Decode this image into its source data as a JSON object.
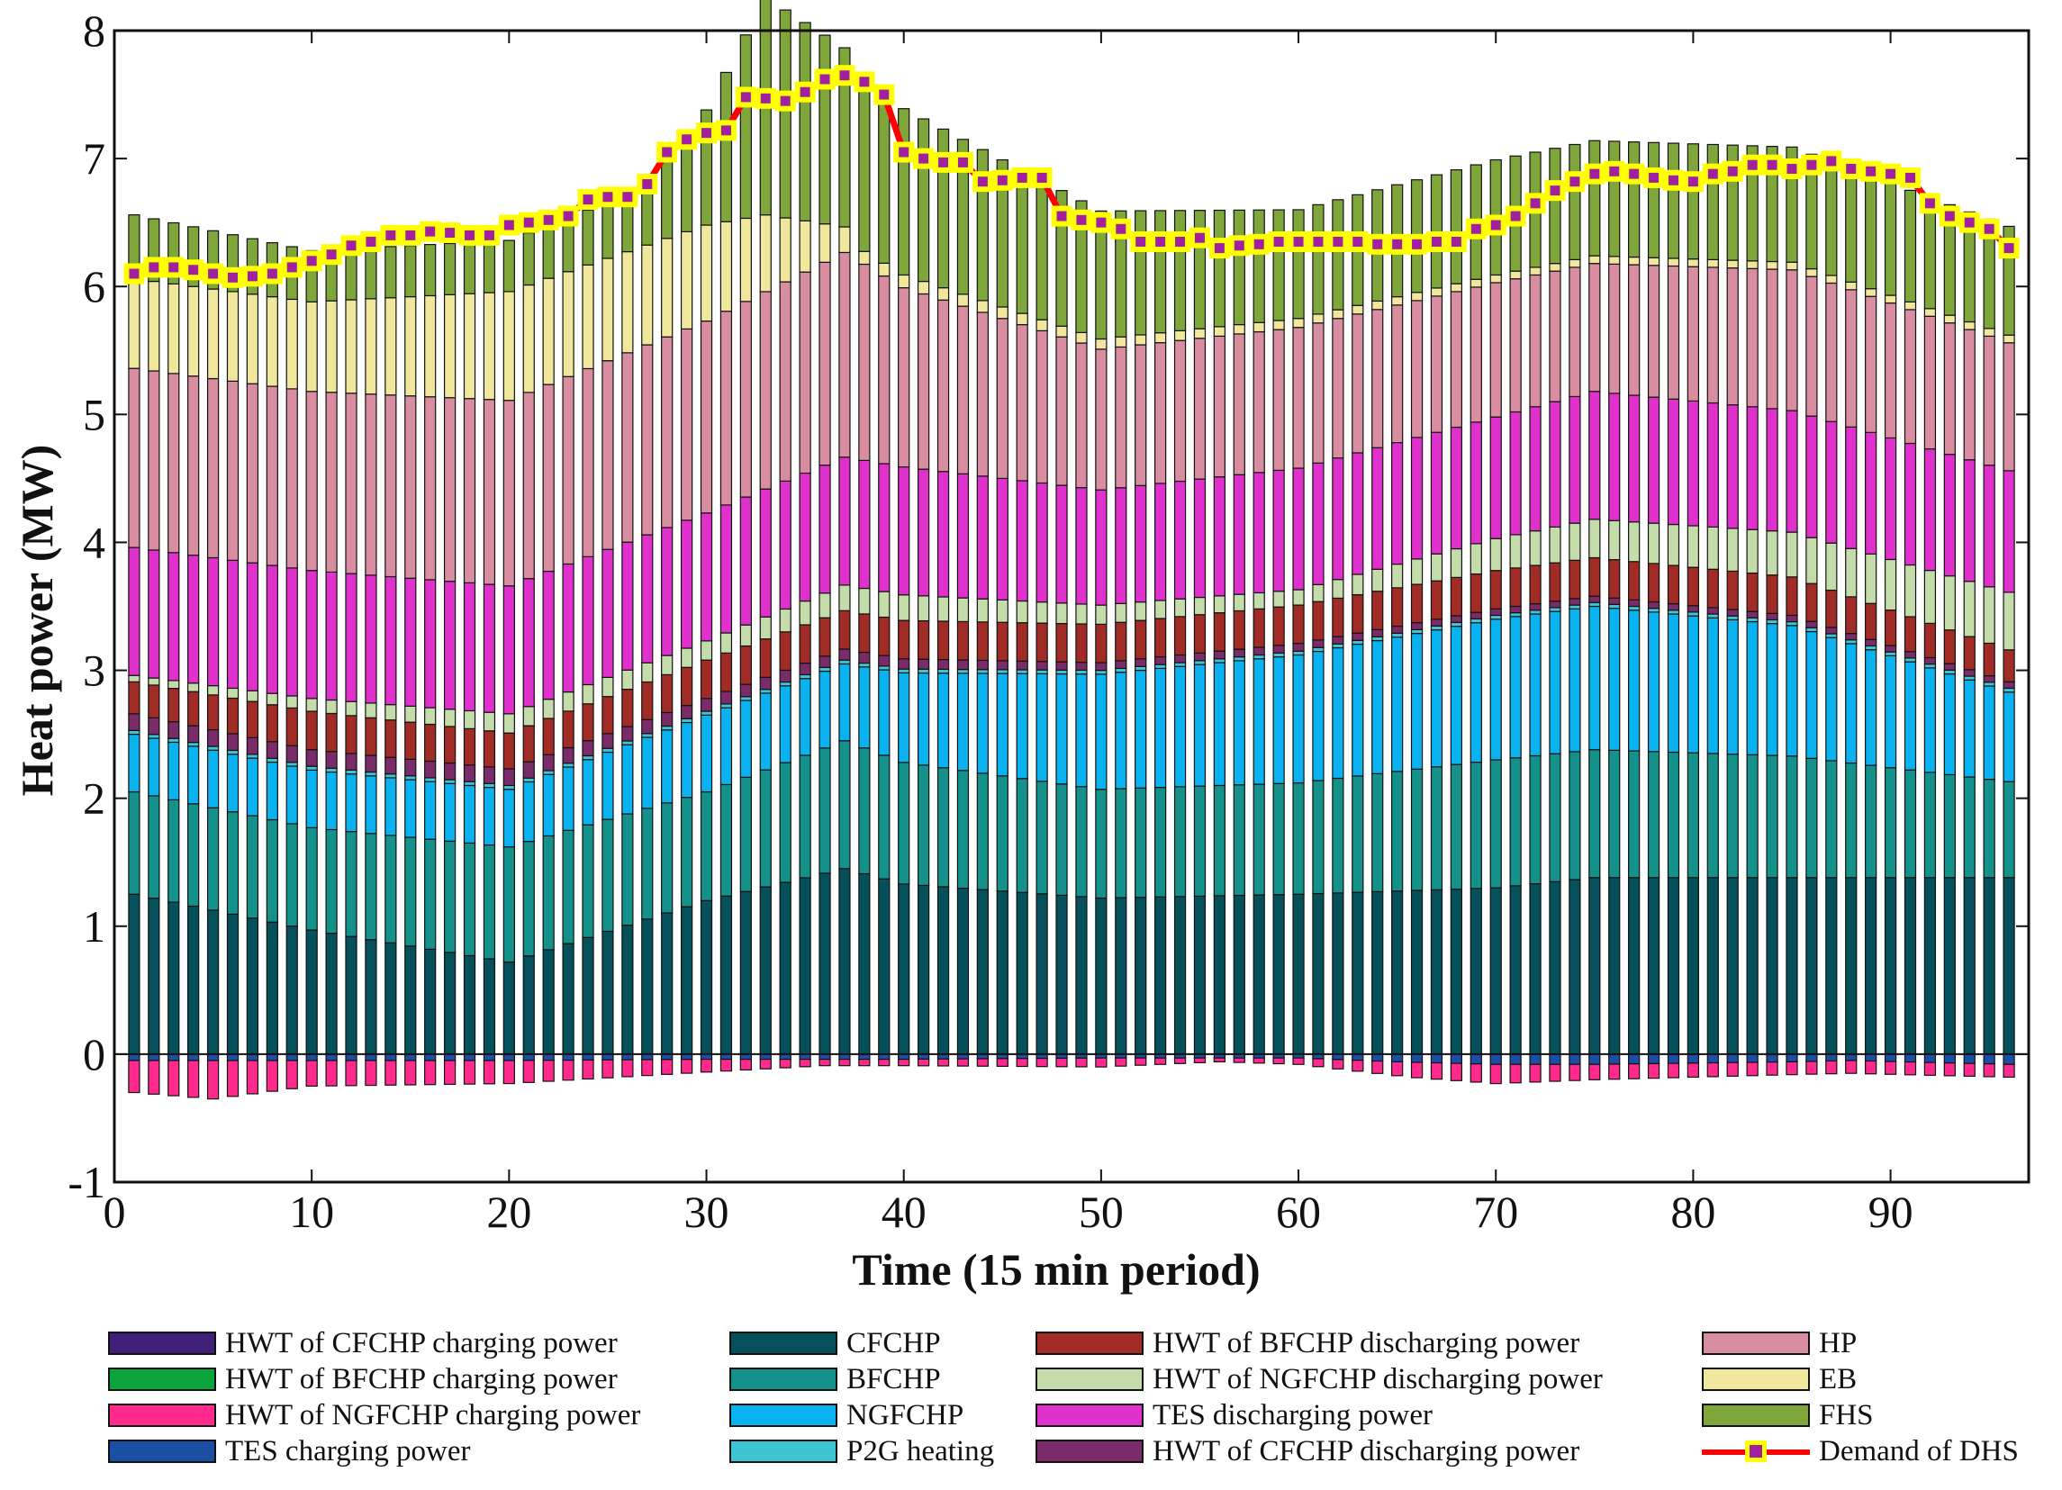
{
  "chart_data": {
    "type": "bar",
    "stacked": true,
    "xlabel": "Time (15 min period)",
    "ylabel": "Heat power (MW)",
    "xlim": [
      0,
      97
    ],
    "ylim": [
      -1,
      8
    ],
    "xticks": [
      0,
      10,
      20,
      30,
      40,
      50,
      60,
      70,
      80,
      90
    ],
    "yticks": [
      -1,
      0,
      1,
      2,
      3,
      4,
      5,
      6,
      7,
      8
    ],
    "x": [
      1,
      2,
      3,
      4,
      5,
      6,
      7,
      8,
      9,
      10,
      11,
      12,
      13,
      14,
      15,
      16,
      17,
      18,
      19,
      20,
      21,
      22,
      23,
      24,
      25,
      26,
      27,
      28,
      29,
      30,
      31,
      32,
      33,
      34,
      35,
      36,
      37,
      38,
      39,
      40,
      41,
      42,
      43,
      44,
      45,
      46,
      47,
      48,
      49,
      50,
      51,
      52,
      53,
      54,
      55,
      56,
      57,
      58,
      59,
      60,
      61,
      62,
      63,
      64,
      65,
      66,
      67,
      68,
      69,
      70,
      71,
      72,
      73,
      74,
      75,
      76,
      77,
      78,
      79,
      80,
      81,
      82,
      83,
      84,
      85,
      86,
      87,
      88,
      89,
      90,
      91,
      92,
      93,
      94,
      95,
      96
    ],
    "key_points": {
      "CFCHP": [
        [
          1,
          1.25
        ],
        [
          10,
          0.97
        ],
        [
          20,
          0.72
        ],
        [
          30,
          1.2
        ],
        [
          37,
          1.45
        ],
        [
          40,
          1.33
        ],
        [
          50,
          1.22
        ],
        [
          60,
          1.25
        ],
        [
          70,
          1.3
        ],
        [
          75,
          1.38
        ],
        [
          85,
          1.38
        ],
        [
          96,
          1.38
        ]
      ],
      "BFCHP": [
        [
          1,
          0.8
        ],
        [
          10,
          0.8
        ],
        [
          20,
          0.9
        ],
        [
          30,
          0.85
        ],
        [
          37,
          1.0
        ],
        [
          40,
          0.95
        ],
        [
          50,
          0.85
        ],
        [
          60,
          0.87
        ],
        [
          70,
          1.0
        ],
        [
          75,
          1.0
        ],
        [
          85,
          0.95
        ],
        [
          96,
          0.75
        ]
      ],
      "NGFCHP": [
        [
          1,
          0.45
        ],
        [
          10,
          0.45
        ],
        [
          20,
          0.45
        ],
        [
          30,
          0.6
        ],
        [
          37,
          0.6
        ],
        [
          40,
          0.7
        ],
        [
          50,
          0.9
        ],
        [
          60,
          1.0
        ],
        [
          70,
          1.1
        ],
        [
          75,
          1.12
        ],
        [
          85,
          1.02
        ],
        [
          96,
          0.7
        ]
      ],
      "P2G heating": [
        [
          1,
          0.03
        ],
        [
          96,
          0.03
        ]
      ],
      "HWT of CFCHP discharging power": [
        [
          1,
          0.13
        ],
        [
          10,
          0.13
        ],
        [
          20,
          0.13
        ],
        [
          30,
          0.1
        ],
        [
          40,
          0.08
        ],
        [
          50,
          0.06
        ],
        [
          60,
          0.06
        ],
        [
          70,
          0.05
        ],
        [
          96,
          0.05
        ]
      ],
      "HWT of BFCHP discharging power": [
        [
          1,
          0.25
        ],
        [
          10,
          0.3
        ],
        [
          20,
          0.28
        ],
        [
          30,
          0.3
        ],
        [
          40,
          0.3
        ],
        [
          50,
          0.3
        ],
        [
          60,
          0.3
        ],
        [
          70,
          0.3
        ],
        [
          75,
          0.3
        ],
        [
          85,
          0.3
        ],
        [
          96,
          0.25
        ]
      ],
      "HWT of NGFCHP discharging power": [
        [
          1,
          0.05
        ],
        [
          10,
          0.1
        ],
        [
          20,
          0.15
        ],
        [
          30,
          0.15
        ],
        [
          37,
          0.2
        ],
        [
          40,
          0.2
        ],
        [
          50,
          0.15
        ],
        [
          60,
          0.12
        ],
        [
          70,
          0.25
        ],
        [
          75,
          0.3
        ],
        [
          85,
          0.35
        ],
        [
          96,
          0.45
        ]
      ],
      "TES discharging power": [
        [
          1,
          1.0
        ],
        [
          10,
          1.0
        ],
        [
          20,
          1.0
        ],
        [
          30,
          1.0
        ],
        [
          37,
          1.0
        ],
        [
          40,
          1.0
        ],
        [
          50,
          0.9
        ],
        [
          60,
          0.95
        ],
        [
          70,
          0.95
        ],
        [
          75,
          1.0
        ],
        [
          85,
          0.95
        ],
        [
          96,
          0.95
        ]
      ],
      "HP": [
        [
          1,
          1.4
        ],
        [
          10,
          1.4
        ],
        [
          20,
          1.45
        ],
        [
          30,
          1.5
        ],
        [
          37,
          1.6
        ],
        [
          40,
          1.4
        ],
        [
          50,
          1.1
        ],
        [
          60,
          1.1
        ],
        [
          70,
          1.05
        ],
        [
          75,
          1.0
        ],
        [
          85,
          1.1
        ],
        [
          96,
          1.0
        ]
      ],
      "EB": [
        [
          1,
          0.7
        ],
        [
          10,
          0.7
        ],
        [
          20,
          0.85
        ],
        [
          30,
          0.75
        ],
        [
          33,
          0.6
        ],
        [
          37,
          0.2
        ],
        [
          38,
          0.1
        ],
        [
          40,
          0.1
        ],
        [
          50,
          0.08
        ],
        [
          60,
          0.07
        ],
        [
          70,
          0.06
        ],
        [
          96,
          0.06
        ]
      ],
      "FHS": [
        [
          1,
          0.5
        ],
        [
          10,
          0.4
        ],
        [
          20,
          0.4
        ],
        [
          27,
          0.45
        ],
        [
          30,
          0.9
        ],
        [
          33,
          1.7
        ],
        [
          37,
          1.4
        ],
        [
          40,
          1.3
        ],
        [
          50,
          1.0
        ],
        [
          60,
          0.85
        ],
        [
          70,
          0.9
        ],
        [
          75,
          0.9
        ],
        [
          85,
          0.9
        ],
        [
          96,
          0.85
        ]
      ],
      "HWT of NGFCHP charging power": [
        [
          1,
          -0.25
        ],
        [
          5,
          -0.3
        ],
        [
          10,
          -0.2
        ],
        [
          20,
          -0.18
        ],
        [
          30,
          -0.1
        ],
        [
          36,
          -0.05
        ],
        [
          40,
          -0.05
        ],
        [
          50,
          -0.07
        ],
        [
          56,
          -0.03
        ],
        [
          60,
          -0.05
        ],
        [
          66,
          -0.12
        ],
        [
          70,
          -0.15
        ],
        [
          75,
          -0.12
        ],
        [
          85,
          -0.1
        ],
        [
          96,
          -0.1
        ]
      ],
      "TES charging power": [
        [
          1,
          -0.05
        ],
        [
          10,
          -0.05
        ],
        [
          20,
          -0.05
        ],
        [
          30,
          -0.04
        ],
        [
          40,
          -0.04
        ],
        [
          50,
          -0.03
        ],
        [
          60,
          -0.03
        ],
        [
          65,
          -0.06
        ],
        [
          70,
          -0.08
        ],
        [
          75,
          -0.08
        ],
        [
          85,
          -0.06
        ],
        [
          88,
          -0.05
        ],
        [
          96,
          -0.08
        ]
      ],
      "HWT of CFCHP charging power": [
        [
          1,
          0
        ],
        [
          96,
          0
        ]
      ],
      "HWT of BFCHP charging power": [
        [
          1,
          0
        ],
        [
          96,
          0
        ]
      ]
    },
    "demand": {
      "name": "Demand of DHS",
      "values": [
        6.1,
        6.15,
        6.15,
        6.13,
        6.1,
        6.07,
        6.08,
        6.1,
        6.15,
        6.2,
        6.25,
        6.32,
        6.35,
        6.4,
        6.4,
        6.43,
        6.42,
        6.4,
        6.4,
        6.48,
        6.5,
        6.52,
        6.55,
        6.68,
        6.7,
        6.7,
        6.8,
        7.05,
        7.15,
        7.2,
        7.22,
        7.48,
        7.47,
        7.45,
        7.52,
        7.62,
        7.65,
        7.6,
        7.5,
        7.05,
        7.0,
        6.97,
        6.97,
        6.82,
        6.83,
        6.85,
        6.85,
        6.55,
        6.52,
        6.5,
        6.45,
        6.35,
        6.35,
        6.35,
        6.38,
        6.3,
        6.32,
        6.33,
        6.35,
        6.35,
        6.35,
        6.35,
        6.35,
        6.33,
        6.33,
        6.33,
        6.35,
        6.35,
        6.45,
        6.48,
        6.55,
        6.65,
        6.75,
        6.82,
        6.88,
        6.9,
        6.88,
        6.85,
        6.83,
        6.82,
        6.88,
        6.9,
        6.95,
        6.95,
        6.92,
        6.95,
        6.98,
        6.92,
        6.9,
        6.88,
        6.85,
        6.65,
        6.55,
        6.5,
        6.45,
        6.3
      ]
    },
    "legend": [
      {
        "name": "HWT of CFCHP charging power",
        "color": "#3f1f78",
        "kind": "bar"
      },
      {
        "name": "HWT of BFCHP charging power",
        "color": "#0ca53c",
        "kind": "bar"
      },
      {
        "name": "HWT of NGFCHP charging power",
        "color": "#ff2a8c",
        "kind": "bar"
      },
      {
        "name": "TES charging power",
        "color": "#1b4fa3",
        "kind": "bar"
      },
      {
        "name": "CFCHP",
        "color": "#06505c",
        "kind": "bar"
      },
      {
        "name": "BFCHP",
        "color": "#13918a",
        "kind": "bar"
      },
      {
        "name": "NGFCHP",
        "color": "#0ab3f0",
        "kind": "bar"
      },
      {
        "name": "P2G heating",
        "color": "#3dc6d1",
        "kind": "bar"
      },
      {
        "name": "HWT of BFCHP discharging power",
        "color": "#a12c25",
        "kind": "bar"
      },
      {
        "name": "HWT of NGFCHP discharging power",
        "color": "#c4dcaa",
        "kind": "bar"
      },
      {
        "name": "TES discharging power",
        "color": "#e131cd",
        "kind": "bar"
      },
      {
        "name": "HWT of CFCHP discharging power",
        "color": "#7a2c6a",
        "kind": "bar"
      },
      {
        "name": "HP",
        "color": "#d98da0",
        "kind": "bar"
      },
      {
        "name": "EB",
        "color": "#f0e79c",
        "kind": "bar"
      },
      {
        "name": "FHS",
        "color": "#7ea63a",
        "kind": "bar"
      },
      {
        "name": "Demand of DHS",
        "color": "#ff0000",
        "marker_edge": "#ffff00",
        "marker_face": "#a020a0",
        "kind": "line"
      }
    ],
    "stack_order_positive": [
      "CFCHP",
      "BFCHP",
      "NGFCHP",
      "P2G heating",
      "HWT of CFCHP discharging power",
      "HWT of BFCHP discharging power",
      "HWT of NGFCHP discharging power",
      "TES discharging power",
      "HP",
      "EB",
      "FHS"
    ],
    "stack_order_negative": [
      "HWT of CFCHP charging power",
      "HWT of BFCHP charging power",
      "TES charging power",
      "HWT of NGFCHP charging power"
    ],
    "legend_position": "below"
  }
}
